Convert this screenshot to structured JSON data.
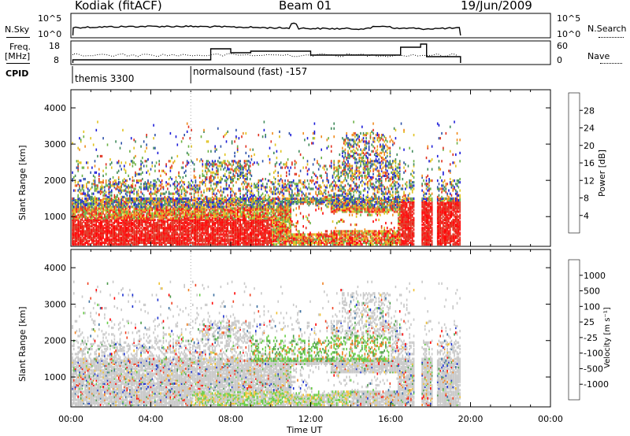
{
  "header": {
    "station": "Kodiak (fitACF)",
    "beam": "Beam 01",
    "date": "19/Jun/2009"
  },
  "panels": {
    "nsky_label": "N.Sky",
    "nsky_ticks": [
      "10^5",
      "10^0"
    ],
    "nsearch_label": "N.Search",
    "nsearch_ticks": [
      "10^5",
      "10^0"
    ],
    "freq_label": "Freq.",
    "freq_unit": "[MHz]",
    "freq_ticks": [
      "18",
      "8"
    ],
    "nave_label": "Nave",
    "nave_ticks": [
      "60",
      "0"
    ],
    "cpid_label": "CPID",
    "cpid_text_1": "themis 3300",
    "cpid_text_2": "normalsound (fast) -157"
  },
  "chart_data": [
    {
      "type": "heatmap",
      "title": "",
      "ylabel": "Slant Range [km]",
      "xlabel": "",
      "yticks": [
        "1000",
        "2000",
        "3000",
        "4000"
      ],
      "ylim": [
        180,
        4500
      ],
      "colorbar": {
        "label": "Power [dB]",
        "ticks": [
          "4",
          "8",
          "12",
          "16",
          "20",
          "24",
          "28"
        ],
        "colors": [
          "#1a1ad8",
          "#2b4fa8",
          "#3f8a5a",
          "#6ab043",
          "#e0c21e",
          "#f08a1c",
          "#e0301e",
          "#ff0000"
        ]
      }
    },
    {
      "type": "heatmap",
      "title": "",
      "ylabel": "Slant Range [km]",
      "xlabel": "Time UT",
      "xticks": [
        "00:00",
        "04:00",
        "08:00",
        "12:00",
        "16:00",
        "20:00",
        "00:00"
      ],
      "yticks": [
        "1000",
        "2000",
        "3000",
        "4000"
      ],
      "ylim": [
        180,
        4500
      ],
      "colorbar": {
        "label": "Velocity [m s⁻¹]",
        "ticks": [
          "1000",
          "500",
          "100",
          "25",
          "-25",
          "-100",
          "-500",
          "-1000"
        ],
        "colors": [
          "#1a2fd0",
          "#3b6fa0",
          "#4a9a4a",
          "#66cc44",
          "#c8c8c8",
          "#f0c030",
          "#f08020",
          "#f04020",
          "#ff0000"
        ]
      }
    }
  ]
}
